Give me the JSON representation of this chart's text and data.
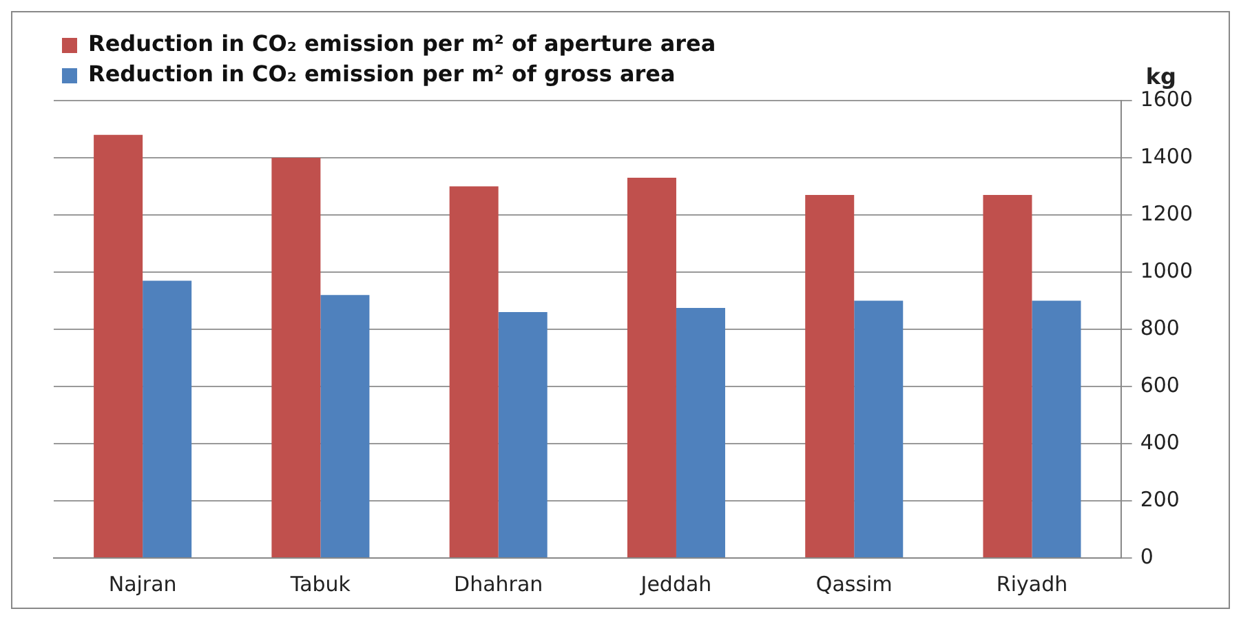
{
  "chart_data": {
    "type": "bar",
    "ylabel": "kg",
    "categories": [
      "Najran",
      "Tabuk",
      "Dhahran",
      "Jeddah",
      "Qassim",
      "Riyadh"
    ],
    "series": [
      {
        "name": "Reduction in CO₂ emission per m² of aperture area",
        "color": "#c0504d",
        "values": [
          1480,
          1400,
          1300,
          1330,
          1270,
          1270
        ]
      },
      {
        "name": "Reduction in CO₂ emission per m² of gross area",
        "color": "#4f81bd",
        "values": [
          970,
          920,
          860,
          875,
          900,
          900
        ]
      }
    ],
    "ylim": [
      0,
      1600
    ],
    "yticks": [
      0,
      200,
      400,
      600,
      800,
      1000,
      1200,
      1400,
      1600
    ],
    "grid": "y",
    "legend": "top left"
  }
}
